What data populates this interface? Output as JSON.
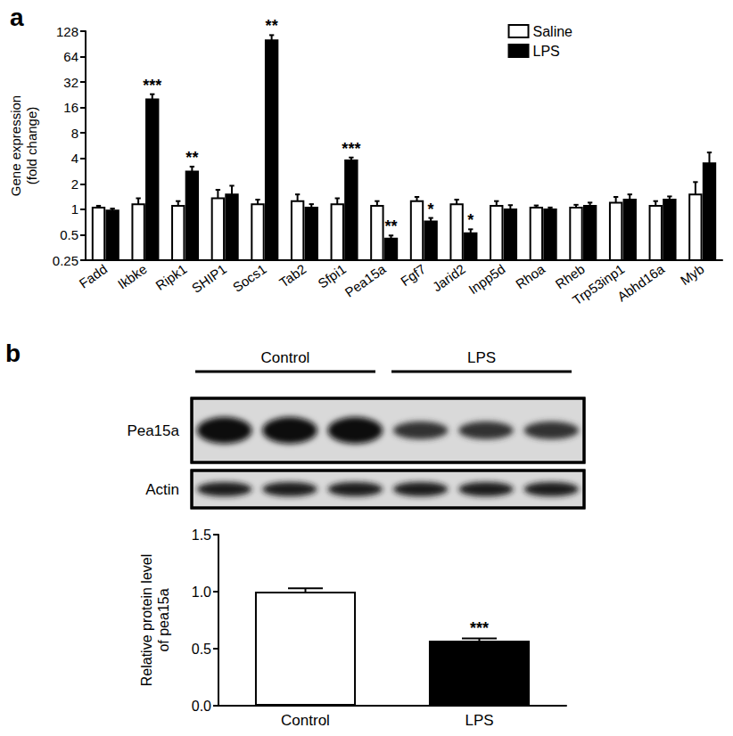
{
  "chart_data": [
    {
      "type": "bar",
      "title": "a",
      "ylabel": "Gene expression\n(fold change)",
      "categories": [
        "Fadd",
        "Ikbke",
        "Ripk1",
        "SHIP1",
        "Socs1",
        "Tab2",
        "Sfpi1",
        "Pea15a",
        "Fgf7",
        "Jarid2",
        "Inpp5d",
        "Rhoa",
        "Rheb",
        "Trp53inp1",
        "Abhd16a",
        "Myb"
      ],
      "series": [
        {
          "name": "Saline",
          "color": "#ffffff",
          "values": [
            1.05,
            1.15,
            1.1,
            1.35,
            1.15,
            1.25,
            1.15,
            1.1,
            1.25,
            1.15,
            1.1,
            1.05,
            1.05,
            1.2,
            1.1,
            1.5
          ],
          "errors": [
            0.05,
            0.2,
            0.15,
            0.35,
            0.15,
            0.25,
            0.2,
            0.15,
            0.15,
            0.15,
            0.15,
            0.06,
            0.08,
            0.2,
            0.15,
            0.6
          ]
        },
        {
          "name": "LPS",
          "color": "#000000",
          "values": [
            0.97,
            20,
            2.8,
            1.5,
            100,
            1.05,
            3.8,
            0.45,
            0.72,
            0.52,
            1.0,
            1.0,
            1.1,
            1.3,
            1.3,
            3.5
          ],
          "errors": [
            0.05,
            3,
            0.4,
            0.4,
            15,
            0.1,
            0.3,
            0.04,
            0.07,
            0.06,
            0.12,
            0.05,
            0.1,
            0.2,
            0.12,
            1.2
          ]
        }
      ],
      "ylim": [
        0.25,
        128
      ],
      "yticks": [
        0.25,
        0.5,
        1,
        2,
        4,
        8,
        16,
        32,
        64,
        128
      ],
      "log": "y",
      "grid": false,
      "legend": "upper right",
      "annotations": [
        {
          "category": "Ikbke",
          "series": "LPS",
          "text": "***"
        },
        {
          "category": "Ripk1",
          "series": "LPS",
          "text": "**"
        },
        {
          "category": "Socs1",
          "series": "LPS",
          "text": "**"
        },
        {
          "category": "Sfpi1",
          "series": "LPS",
          "text": "***"
        },
        {
          "category": "Pea15a",
          "series": "LPS",
          "text": "**"
        },
        {
          "category": "Fgf7",
          "series": "LPS",
          "text": "*"
        },
        {
          "category": "Jarid2",
          "series": "LPS",
          "text": "*"
        }
      ]
    },
    {
      "type": "bar",
      "title": "b",
      "ylabel": "Relative protein level\nof pea15a",
      "categories": [
        "Control",
        "LPS"
      ],
      "values": [
        1.0,
        0.57
      ],
      "errors": [
        0.03,
        0.02
      ],
      "colors": [
        "#ffffff",
        "#000000"
      ],
      "ylim": [
        0,
        1.5
      ],
      "yticks": [
        {
          "value": 0,
          "label": "0.0"
        },
        0.5,
        {
          "value": 1,
          "label": "1.0"
        },
        1.5
      ],
      "grid": false,
      "annotations": [
        {
          "category": "LPS",
          "text": "***"
        }
      ]
    }
  ],
  "blot": {
    "groups": [
      {
        "label": "Control",
        "lanes": 3
      },
      {
        "label": "LPS",
        "lanes": 3
      }
    ],
    "rows": [
      "Pea15a",
      "Actin"
    ]
  }
}
